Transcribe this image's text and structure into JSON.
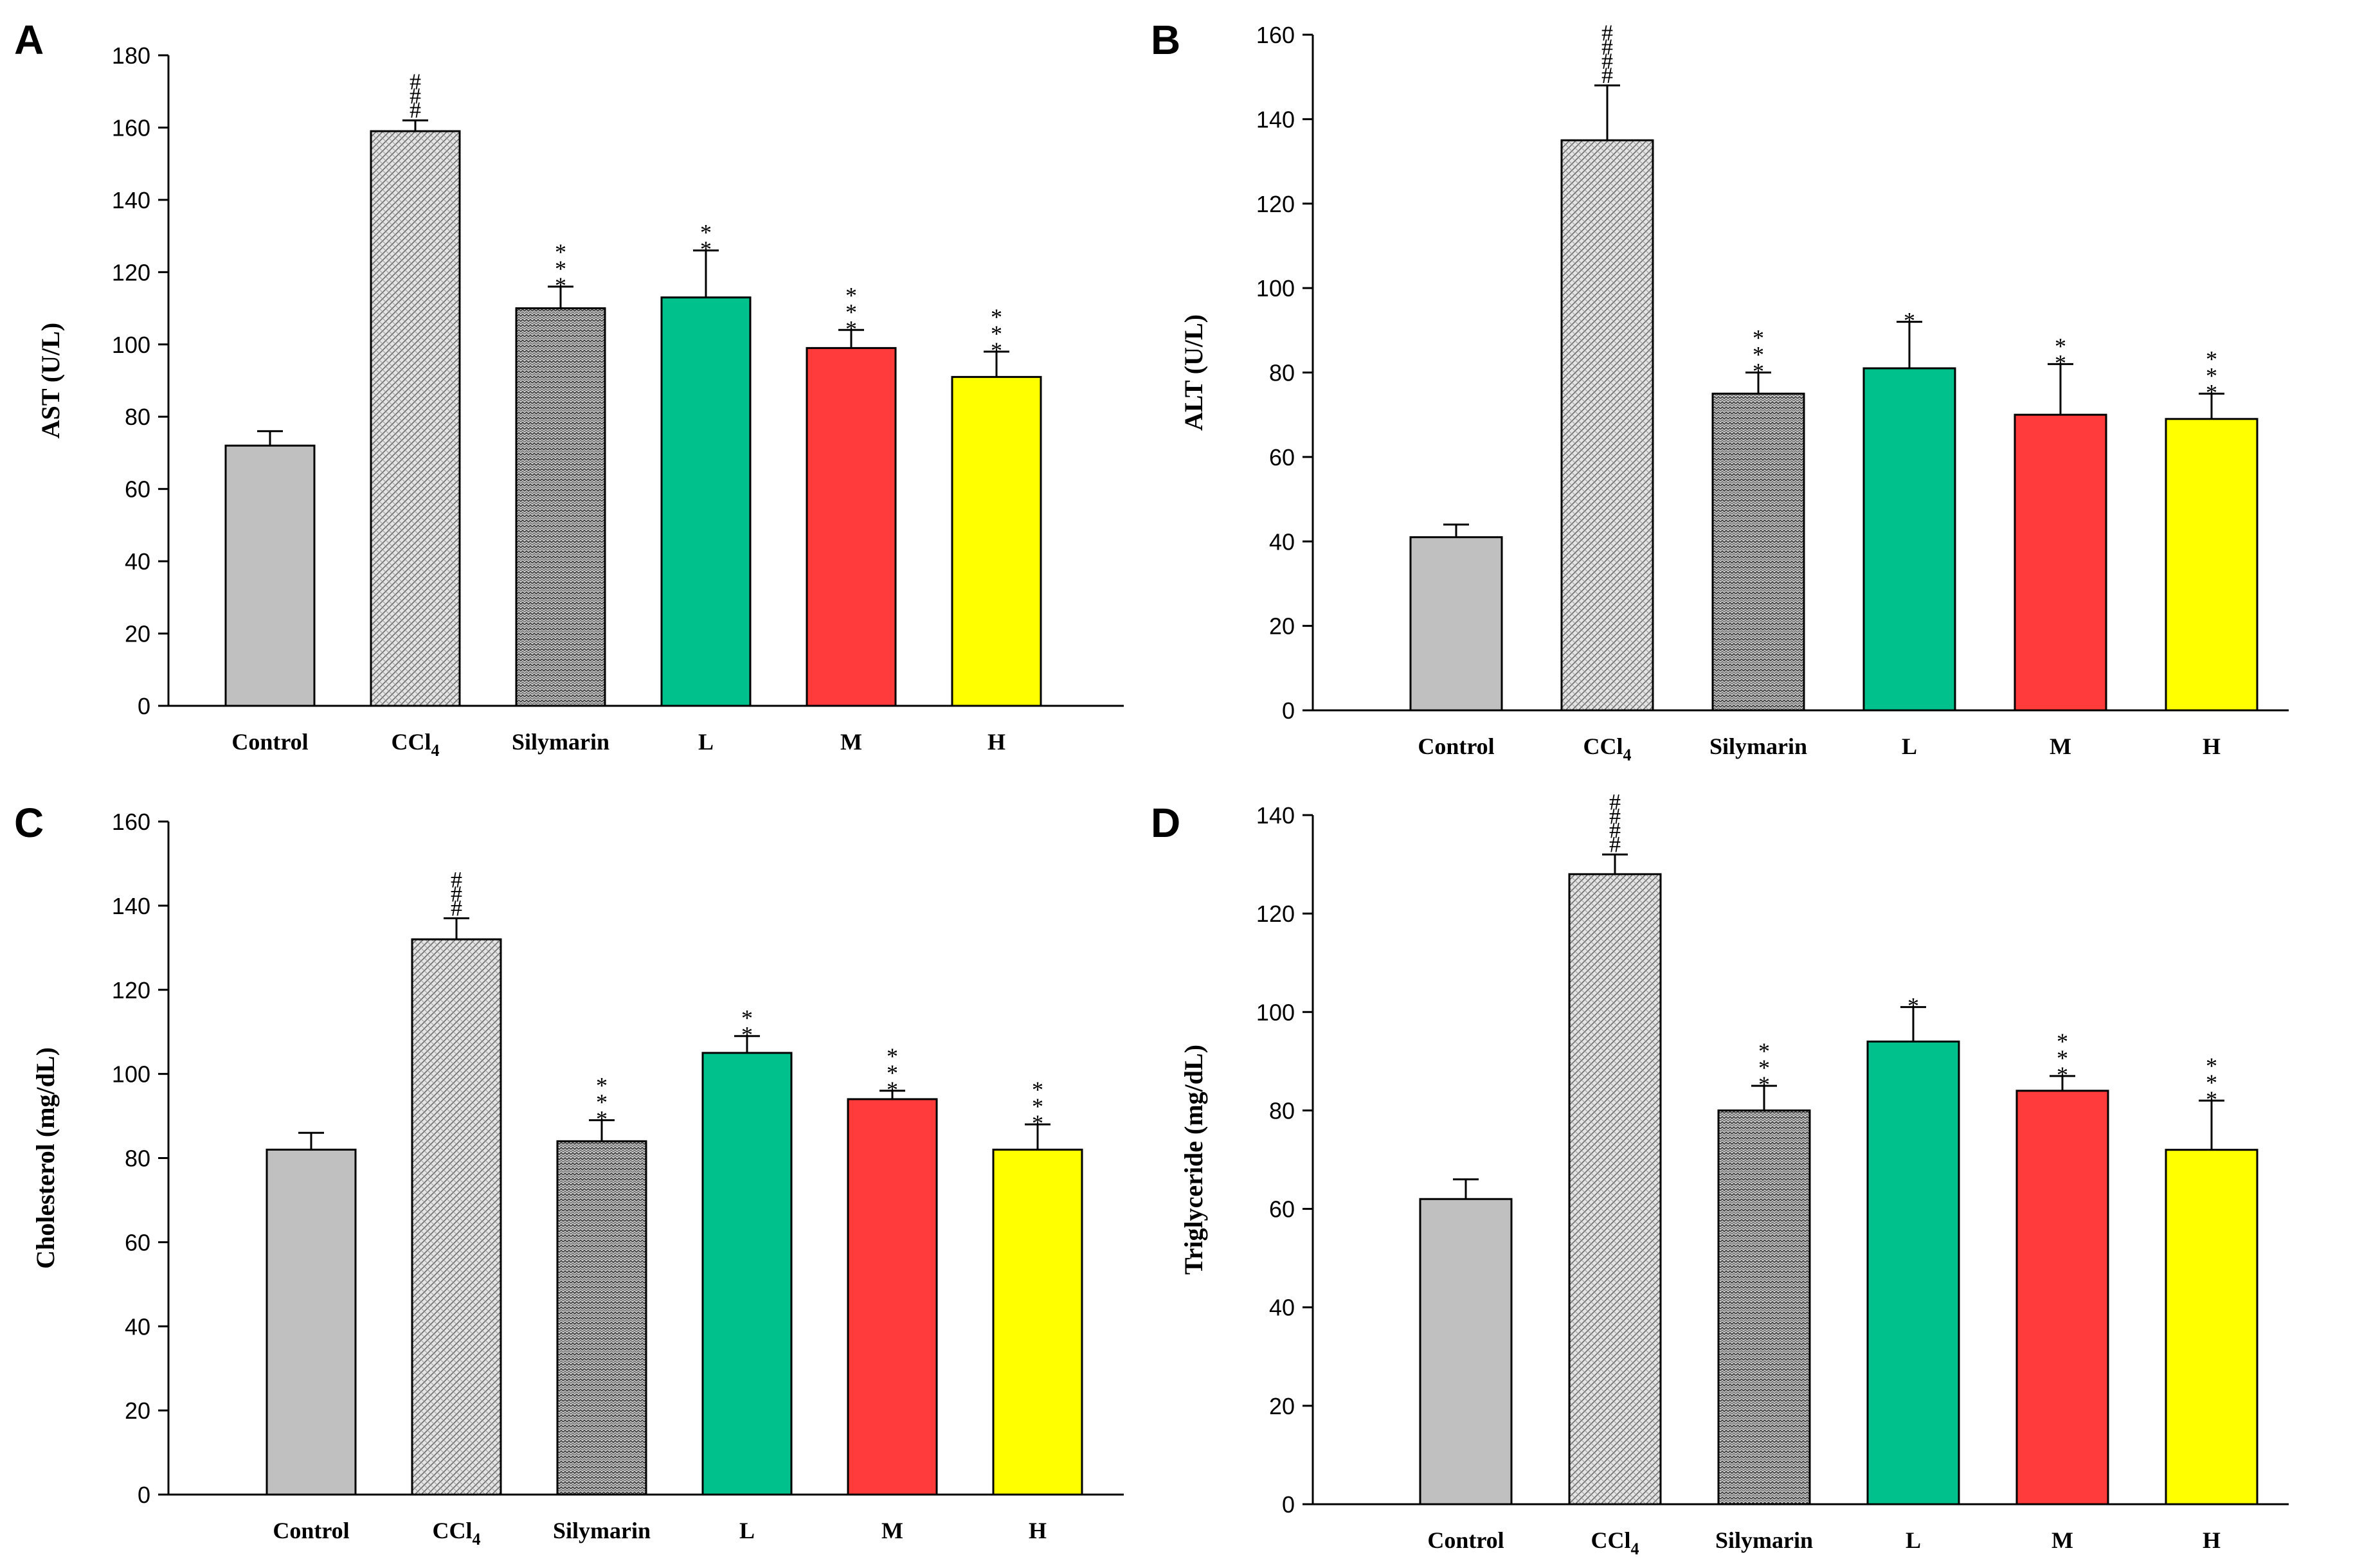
{
  "figure": {
    "colors": {
      "control": "#c0c0c0",
      "ccl4": "#dcdcdc",
      "silymarin": "#a8a8a8",
      "L": "#00c08b",
      "M": "#ff3b3b",
      "H": "#ffff00"
    }
  },
  "chart_data": [
    {
      "panel": "A",
      "type": "bar",
      "title": "",
      "xlabel": "",
      "ylabel": "AST (U/L)",
      "categories": [
        "Control",
        "CCl",
        "Silymarin",
        "L",
        "M",
        "H"
      ],
      "category_subscripts": [
        "",
        "4",
        "",
        "",
        "",
        ""
      ],
      "values": [
        72,
        159,
        110,
        113,
        99,
        91
      ],
      "errors": [
        4,
        3,
        6,
        13,
        5,
        7
      ],
      "annotations": [
        "",
        "###",
        "***",
        "**",
        "***",
        "***"
      ],
      "ylim": [
        0,
        180
      ],
      "yticks": [
        0,
        20,
        40,
        60,
        80,
        100,
        120,
        140,
        160,
        180
      ],
      "grid": false
    },
    {
      "panel": "B",
      "type": "bar",
      "title": "",
      "xlabel": "",
      "ylabel": "ALT (U/L)",
      "categories": [
        "Control",
        "CCl",
        "Silymarin",
        "L",
        "M",
        "H"
      ],
      "category_subscripts": [
        "",
        "4",
        "",
        "",
        "",
        ""
      ],
      "values": [
        41,
        135,
        75,
        81,
        70,
        69
      ],
      "errors": [
        3,
        13,
        5,
        11,
        12,
        6
      ],
      "annotations": [
        "",
        "####",
        "***",
        "*",
        "**",
        "***"
      ],
      "ylim": [
        0,
        160
      ],
      "yticks": [
        0,
        20,
        40,
        60,
        80,
        100,
        120,
        140,
        160
      ],
      "grid": false
    },
    {
      "panel": "C",
      "type": "bar",
      "title": "",
      "xlabel": "",
      "ylabel": "Cholesterol (mg/dL)",
      "categories": [
        "Control",
        "CCl",
        "Silymarin",
        "L",
        "M",
        "H"
      ],
      "category_subscripts": [
        "",
        "4",
        "",
        "",
        "",
        ""
      ],
      "values": [
        82,
        132,
        84,
        105,
        94,
        82
      ],
      "errors": [
        4,
        5,
        5,
        4,
        2,
        6
      ],
      "annotations": [
        "",
        "###",
        "***",
        "**",
        "***",
        "***"
      ],
      "ylim": [
        0,
        160
      ],
      "yticks": [
        0,
        20,
        40,
        60,
        80,
        100,
        120,
        140,
        160
      ],
      "grid": false
    },
    {
      "panel": "D",
      "type": "bar",
      "title": "",
      "xlabel": "",
      "ylabel": "Triglyceride (mg/dL)",
      "categories": [
        "Control",
        "CCl",
        "Silymarin",
        "L",
        "M",
        "H"
      ],
      "category_subscripts": [
        "",
        "4",
        "",
        "",
        "",
        ""
      ],
      "values": [
        62,
        128,
        80,
        94,
        84,
        72
      ],
      "errors": [
        4,
        4,
        5,
        7,
        3,
        10
      ],
      "annotations": [
        "",
        "####",
        "***",
        "*",
        "***",
        "***"
      ],
      "ylim": [
        0,
        140
      ],
      "yticks": [
        0,
        20,
        40,
        60,
        80,
        100,
        120,
        140
      ],
      "grid": false
    }
  ]
}
